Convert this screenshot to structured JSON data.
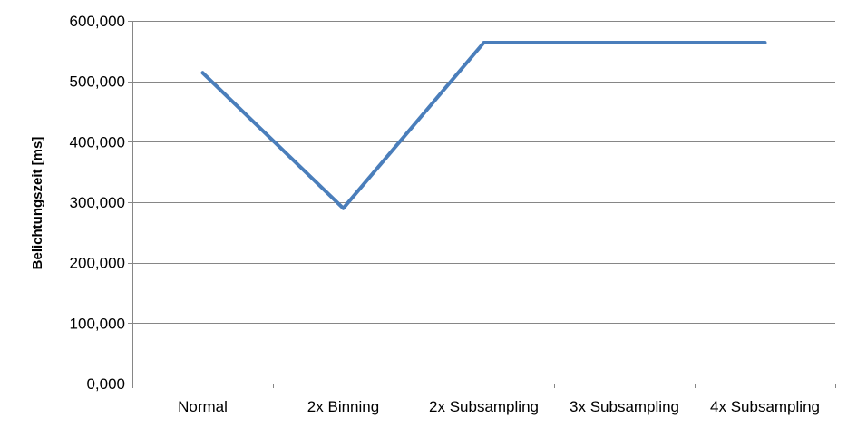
{
  "chart_data": {
    "type": "line",
    "title": "",
    "xlabel": "",
    "ylabel": "Belichtungszeit [ms]",
    "categories": [
      "Normal",
      "2x Binning",
      "2x Subsampling",
      "3x Subsampling",
      "4x Subsampling"
    ],
    "series": [
      {
        "name": "Belichtungszeit",
        "values": [
          514,
          290,
          564,
          564,
          564
        ],
        "color": "#4a7ebb"
      }
    ],
    "ylim": [
      0,
      600
    ],
    "yticks": [
      0,
      100,
      200,
      300,
      400,
      500,
      600
    ],
    "ytick_labels": [
      "0,000",
      "100,000",
      "200,000",
      "300,000",
      "400,000",
      "500,000",
      "600,000"
    ],
    "grid": true,
    "legend": "none",
    "colors": {
      "line": "#4a7ebb",
      "grid": "#868686",
      "axis": "#868686"
    }
  }
}
